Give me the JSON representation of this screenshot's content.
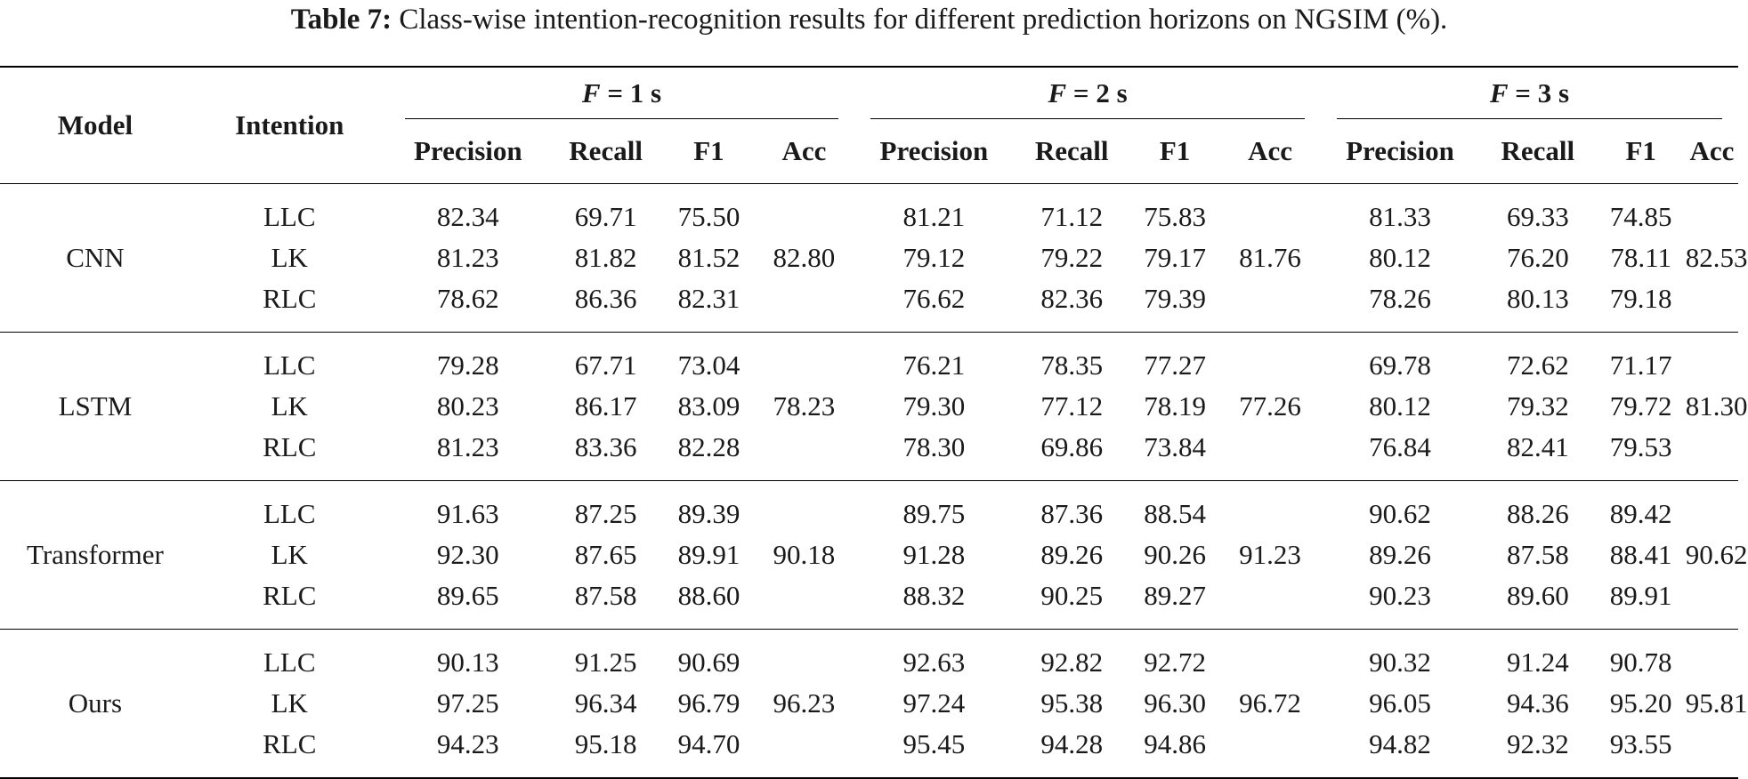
{
  "caption": {
    "label": "Table 7:",
    "text": "Class-wise intention-recognition results for different prediction horizons on NGSIM (%)."
  },
  "table": {
    "col_model": "Model",
    "col_intention": "Intention",
    "horizons": [
      {
        "var": "F",
        "eq": "= 1 s"
      },
      {
        "var": "F",
        "eq": "= 2 s"
      },
      {
        "var": "F",
        "eq": "= 3 s"
      }
    ],
    "metrics": [
      "Precision",
      "Recall",
      "F1",
      "Acc"
    ],
    "groups": [
      {
        "model": "CNN",
        "rows": [
          {
            "intention": "LLC",
            "h": [
              [
                "82.34",
                "69.71",
                "75.50"
              ],
              [
                "81.21",
                "71.12",
                "75.83"
              ],
              [
                "81.33",
                "69.33",
                "74.85"
              ]
            ]
          },
          {
            "intention": "LK",
            "h": [
              [
                "81.23",
                "81.82",
                "81.52"
              ],
              [
                "79.12",
                "79.22",
                "79.17"
              ],
              [
                "80.12",
                "76.20",
                "78.11"
              ]
            ]
          },
          {
            "intention": "RLC",
            "h": [
              [
                "78.62",
                "86.36",
                "82.31"
              ],
              [
                "76.62",
                "82.36",
                "79.39"
              ],
              [
                "78.26",
                "80.13",
                "79.18"
              ]
            ]
          }
        ],
        "acc": [
          "82.80",
          "81.76",
          "82.53"
        ]
      },
      {
        "model": "LSTM",
        "rows": [
          {
            "intention": "LLC",
            "h": [
              [
                "79.28",
                "67.71",
                "73.04"
              ],
              [
                "76.21",
                "78.35",
                "77.27"
              ],
              [
                "69.78",
                "72.62",
                "71.17"
              ]
            ]
          },
          {
            "intention": "LK",
            "h": [
              [
                "80.23",
                "86.17",
                "83.09"
              ],
              [
                "79.30",
                "77.12",
                "78.19"
              ],
              [
                "80.12",
                "79.32",
                "79.72"
              ]
            ]
          },
          {
            "intention": "RLC",
            "h": [
              [
                "81.23",
                "83.36",
                "82.28"
              ],
              [
                "78.30",
                "69.86",
                "73.84"
              ],
              [
                "76.84",
                "82.41",
                "79.53"
              ]
            ]
          }
        ],
        "acc": [
          "78.23",
          "77.26",
          "81.30"
        ]
      },
      {
        "model": "Transformer",
        "rows": [
          {
            "intention": "LLC",
            "h": [
              [
                "91.63",
                "87.25",
                "89.39"
              ],
              [
                "89.75",
                "87.36",
                "88.54"
              ],
              [
                "90.62",
                "88.26",
                "89.42"
              ]
            ]
          },
          {
            "intention": "LK",
            "h": [
              [
                "92.30",
                "87.65",
                "89.91"
              ],
              [
                "91.28",
                "89.26",
                "90.26"
              ],
              [
                "89.26",
                "87.58",
                "88.41"
              ]
            ]
          },
          {
            "intention": "RLC",
            "h": [
              [
                "89.65",
                "87.58",
                "88.60"
              ],
              [
                "88.32",
                "90.25",
                "89.27"
              ],
              [
                "90.23",
                "89.60",
                "89.91"
              ]
            ]
          }
        ],
        "acc": [
          "90.18",
          "91.23",
          "90.62"
        ]
      },
      {
        "model": "Ours",
        "rows": [
          {
            "intention": "LLC",
            "h": [
              [
                "90.13",
                "91.25",
                "90.69"
              ],
              [
                "92.63",
                "92.82",
                "92.72"
              ],
              [
                "90.32",
                "91.24",
                "90.78"
              ]
            ]
          },
          {
            "intention": "LK",
            "h": [
              [
                "97.25",
                "96.34",
                "96.79"
              ],
              [
                "97.24",
                "95.38",
                "96.30"
              ],
              [
                "96.05",
                "94.36",
                "95.20"
              ]
            ]
          },
          {
            "intention": "RLC",
            "h": [
              [
                "94.23",
                "95.18",
                "94.70"
              ],
              [
                "95.45",
                "94.28",
                "94.86"
              ],
              [
                "94.82",
                "92.32",
                "93.55"
              ]
            ]
          }
        ],
        "acc": [
          "96.23",
          "96.72",
          "95.81"
        ]
      }
    ]
  }
}
